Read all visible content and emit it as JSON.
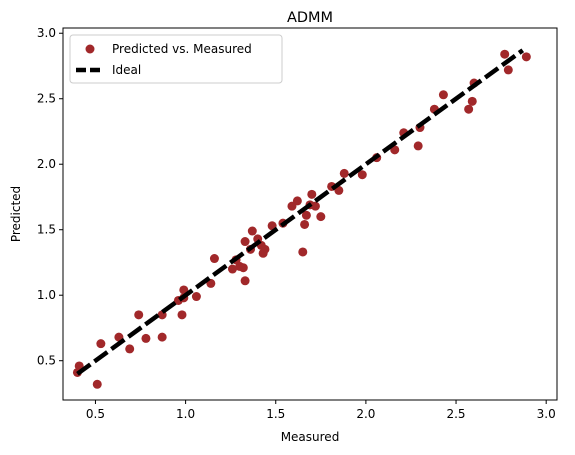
{
  "chart_data": {
    "type": "scatter",
    "title": "ADMM",
    "xlabel": "Measured",
    "ylabel": "Predicted",
    "xlim": [
      0.32,
      3.06
    ],
    "ylim": [
      0.2,
      3.04
    ],
    "xticks": [
      0.5,
      1.0,
      1.5,
      2.0,
      2.5,
      3.0
    ],
    "xtick_labels": [
      "0.5",
      "1.0",
      "1.5",
      "2.0",
      "2.5",
      "3.0"
    ],
    "yticks": [
      0.5,
      1.0,
      1.5,
      2.0,
      2.5,
      3.0
    ],
    "ytick_labels": [
      "0.5",
      "1.0",
      "1.5",
      "2.0",
      "2.5",
      "3.0"
    ],
    "grid": false,
    "legend_position": "top-left",
    "series": [
      {
        "name": "Predicted vs. Measured",
        "kind": "scatter",
        "color": "#a1282a",
        "points": [
          [
            0.4,
            0.41
          ],
          [
            0.41,
            0.46
          ],
          [
            0.51,
            0.32
          ],
          [
            0.53,
            0.63
          ],
          [
            0.63,
            0.68
          ],
          [
            0.69,
            0.59
          ],
          [
            0.74,
            0.85
          ],
          [
            0.78,
            0.67
          ],
          [
            0.87,
            0.68
          ],
          [
            0.87,
            0.85
          ],
          [
            0.96,
            0.96
          ],
          [
            0.98,
            0.85
          ],
          [
            0.99,
            1.04
          ],
          [
            0.99,
            0.98
          ],
          [
            1.06,
            0.99
          ],
          [
            1.14,
            1.09
          ],
          [
            1.16,
            1.28
          ],
          [
            1.26,
            1.2
          ],
          [
            1.28,
            1.27
          ],
          [
            1.3,
            1.22
          ],
          [
            1.32,
            1.21
          ],
          [
            1.33,
            1.41
          ],
          [
            1.33,
            1.11
          ],
          [
            1.36,
            1.35
          ],
          [
            1.37,
            1.49
          ],
          [
            1.4,
            1.43
          ],
          [
            1.42,
            1.38
          ],
          [
            1.43,
            1.32
          ],
          [
            1.44,
            1.35
          ],
          [
            1.48,
            1.53
          ],
          [
            1.54,
            1.55
          ],
          [
            1.59,
            1.68
          ],
          [
            1.62,
            1.72
          ],
          [
            1.65,
            1.33
          ],
          [
            1.66,
            1.54
          ],
          [
            1.67,
            1.61
          ],
          [
            1.69,
            1.69
          ],
          [
            1.7,
            1.77
          ],
          [
            1.72,
            1.68
          ],
          [
            1.75,
            1.6
          ],
          [
            1.81,
            1.83
          ],
          [
            1.85,
            1.8
          ],
          [
            1.88,
            1.93
          ],
          [
            1.98,
            1.92
          ],
          [
            2.06,
            2.05
          ],
          [
            2.16,
            2.11
          ],
          [
            2.21,
            2.24
          ],
          [
            2.29,
            2.14
          ],
          [
            2.3,
            2.28
          ],
          [
            2.38,
            2.42
          ],
          [
            2.43,
            2.53
          ],
          [
            2.57,
            2.42
          ],
          [
            2.59,
            2.48
          ],
          [
            2.6,
            2.62
          ],
          [
            2.77,
            2.84
          ],
          [
            2.79,
            2.72
          ],
          [
            2.89,
            2.82
          ]
        ]
      },
      {
        "name": "Ideal",
        "kind": "line",
        "color": "#000000",
        "dash": "dashed",
        "x": [
          0.4,
          2.87
        ],
        "y": [
          0.4,
          2.87
        ]
      }
    ]
  }
}
